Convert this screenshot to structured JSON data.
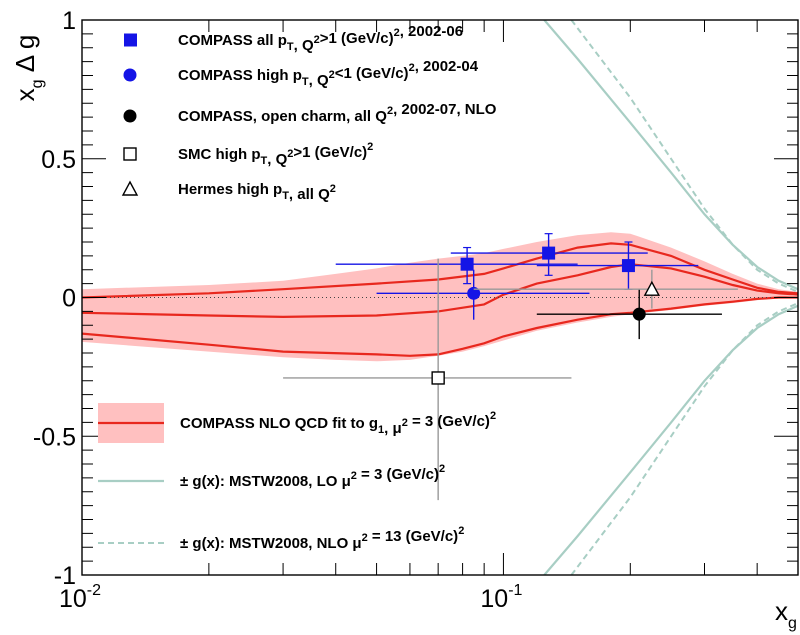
{
  "chart_data": {
    "type": "scatter",
    "x_scale": "log",
    "xlim": [
      0.01,
      0.5
    ],
    "ylim": [
      -1,
      1
    ],
    "xlabel": {
      "base": "x",
      "sub": "g"
    },
    "ylabel": {
      "base": "x",
      "sub": "g",
      "tail": " Δ g"
    },
    "yticks": [
      {
        "value": 1,
        "label": "1"
      },
      {
        "value": 0.5,
        "label": "0.5"
      },
      {
        "value": 0,
        "label": "0"
      },
      {
        "value": -0.5,
        "label": "-0.5"
      },
      {
        "value": -1,
        "label": "-1"
      }
    ],
    "xticks": [
      {
        "value": 0.01,
        "base": "10",
        "exp": "-2"
      },
      {
        "value": 0.1,
        "base": "10",
        "exp": "-1"
      }
    ],
    "colors": {
      "compass_all": "#1414e6",
      "compass_high": "#1414e6",
      "charm": "#000000",
      "smc": "#888888",
      "hermes": "#888888",
      "band": "#ffc0c0",
      "fit": "#e8281e",
      "mstw": "#a8cec4"
    },
    "series": [
      {
        "name": "COMPASS all pT, Q²>1 (GeV/c)², 2002-06",
        "marker": "square",
        "points": [
          {
            "x": 0.082,
            "xlo": 0.04,
            "xhi": 0.15,
            "y": 0.12,
            "ylo": 0.05,
            "yhi": 0.18
          },
          {
            "x": 0.128,
            "xlo": 0.075,
            "xhi": 0.22,
            "y": 0.16,
            "ylo": 0.08,
            "yhi": 0.23
          },
          {
            "x": 0.198,
            "xlo": 0.12,
            "xhi": 0.29,
            "y": 0.115,
            "ylo": 0.03,
            "yhi": 0.2
          }
        ]
      },
      {
        "name": "COMPASS high pT, Q²<1 (GeV/c)², 2002-04",
        "marker": "circle",
        "points": [
          {
            "x": 0.085,
            "xlo": 0.05,
            "xhi": 0.16,
            "y": 0.015,
            "ylo": -0.08,
            "yhi": 0.1
          }
        ]
      },
      {
        "name": "COMPASS, open charm, all Q², 2002-07, NLO",
        "marker": "circle",
        "points": [
          {
            "x": 0.21,
            "xlo": 0.12,
            "xhi": 0.33,
            "y": -0.06,
            "ylo": -0.15,
            "yhi": 0.03
          }
        ]
      },
      {
        "name": "SMC high pT, Q²>1 (GeV/c)²",
        "marker": "open-square",
        "points": [
          {
            "x": 0.07,
            "xlo": 0.03,
            "xhi": 0.145,
            "y": -0.29,
            "ylo": -0.73,
            "yhi": 0.14
          }
        ]
      },
      {
        "name": "Hermes high pT, all Q²",
        "marker": "open-triangle",
        "points": [
          {
            "x": 0.225,
            "xlo": 0.085,
            "xhi": 0.36,
            "y": 0.03,
            "ylo": -0.04,
            "yhi": 0.1
          }
        ]
      }
    ],
    "fit_band": {
      "x": [
        0.01,
        0.02,
        0.03,
        0.04,
        0.05,
        0.06,
        0.07,
        0.08,
        0.09,
        0.1,
        0.12,
        0.15,
        0.18,
        0.2,
        0.25,
        0.3,
        0.35,
        0.4,
        0.45,
        0.5
      ],
      "upper": [
        0.03,
        0.045,
        0.06,
        0.085,
        0.105,
        0.125,
        0.14,
        0.15,
        0.16,
        0.175,
        0.2,
        0.225,
        0.235,
        0.23,
        0.18,
        0.13,
        0.085,
        0.05,
        0.03,
        0.02
      ],
      "lower": [
        -0.16,
        -0.195,
        -0.215,
        -0.225,
        -0.23,
        -0.225,
        -0.21,
        -0.195,
        -0.175,
        -0.155,
        -0.12,
        -0.09,
        -0.07,
        -0.06,
        -0.045,
        -0.03,
        -0.02,
        -0.01,
        0.0,
        0.01
      ]
    },
    "fit_curves": [
      {
        "x": [
          0.01,
          0.02,
          0.03,
          0.05,
          0.07,
          0.09,
          0.1,
          0.12,
          0.15,
          0.18,
          0.2,
          0.25,
          0.3,
          0.35,
          0.4,
          0.45,
          0.5
        ],
        "y": [
          0.0,
          0.015,
          0.03,
          0.05,
          0.065,
          0.085,
          0.105,
          0.14,
          0.18,
          0.195,
          0.19,
          0.15,
          0.1,
          0.065,
          0.035,
          0.02,
          0.015
        ]
      },
      {
        "x": [
          0.01,
          0.02,
          0.03,
          0.05,
          0.07,
          0.09,
          0.1,
          0.12,
          0.15,
          0.18,
          0.2,
          0.25,
          0.3,
          0.35,
          0.4,
          0.45,
          0.5
        ],
        "y": [
          -0.055,
          -0.065,
          -0.07,
          -0.065,
          -0.05,
          -0.025,
          0.01,
          0.05,
          0.08,
          0.11,
          0.12,
          0.105,
          0.075,
          0.045,
          0.025,
          0.015,
          0.01
        ]
      },
      {
        "x": [
          0.01,
          0.02,
          0.03,
          0.05,
          0.06,
          0.07,
          0.08,
          0.09,
          0.1,
          0.12,
          0.15,
          0.18,
          0.2,
          0.25,
          0.3,
          0.35,
          0.4,
          0.45,
          0.5
        ],
        "y": [
          -0.13,
          -0.17,
          -0.195,
          -0.205,
          -0.21,
          -0.205,
          -0.185,
          -0.165,
          -0.14,
          -0.11,
          -0.08,
          -0.06,
          -0.055,
          -0.04,
          -0.025,
          -0.015,
          -0.005,
          0.0,
          0.0
        ]
      }
    ],
    "mstw_lo": [
      {
        "x": [
          0.125,
          0.15,
          0.2,
          0.25,
          0.3,
          0.35,
          0.4,
          0.45,
          0.5
        ],
        "y": [
          1.0,
          0.86,
          0.63,
          0.45,
          0.3,
          0.19,
          0.11,
          0.06,
          0.03
        ]
      },
      {
        "x": [
          0.125,
          0.15,
          0.2,
          0.25,
          0.3,
          0.35,
          0.4,
          0.45,
          0.5
        ],
        "y": [
          -1.0,
          -0.86,
          -0.63,
          -0.45,
          -0.3,
          -0.19,
          -0.11,
          -0.06,
          -0.03
        ]
      }
    ],
    "mstw_nlo": [
      {
        "x": [
          0.145,
          0.2,
          0.25,
          0.3,
          0.35,
          0.4,
          0.45,
          0.5
        ],
        "y": [
          1.0,
          0.72,
          0.5,
          0.32,
          0.19,
          0.1,
          0.05,
          0.02
        ]
      },
      {
        "x": [
          0.145,
          0.2,
          0.25,
          0.3,
          0.35,
          0.4,
          0.45,
          0.5
        ],
        "y": [
          -1.0,
          -0.72,
          -0.5,
          -0.32,
          -0.19,
          -0.1,
          -0.05,
          -0.02
        ]
      }
    ],
    "legend": {
      "placement": "top-left and bottom-left",
      "entries": [
        {
          "parts": [
            [
              "COMPASS all p",
              ""
            ],
            [
              "T",
              "sub"
            ],
            [
              ", Q",
              ""
            ],
            [
              "2",
              "sup"
            ],
            [
              ">1 (GeV/c)",
              ""
            ],
            [
              "2",
              "sup"
            ],
            [
              ", 2002-06",
              ""
            ]
          ]
        },
        {
          "parts": [
            [
              "COMPASS high p",
              ""
            ],
            [
              "T",
              "sub"
            ],
            [
              ", Q",
              ""
            ],
            [
              "2",
              "sup"
            ],
            [
              "<1 (GeV/c)",
              ""
            ],
            [
              "2",
              "sup"
            ],
            [
              ", 2002-04",
              ""
            ]
          ]
        },
        {
          "parts": [
            [
              "COMPASS, open charm, all Q",
              ""
            ],
            [
              "2",
              "sup"
            ],
            [
              ", 2002-07, NLO",
              ""
            ]
          ]
        },
        {
          "parts": [
            [
              "SMC high p",
              ""
            ],
            [
              "T",
              "sub"
            ],
            [
              ", Q",
              ""
            ],
            [
              "2",
              "sup"
            ],
            [
              ">1 (GeV/c)",
              ""
            ],
            [
              "2",
              "sup"
            ]
          ]
        },
        {
          "parts": [
            [
              "Hermes high p",
              ""
            ],
            [
              "T",
              "sub"
            ],
            [
              ", all Q",
              ""
            ],
            [
              "2",
              "sup"
            ]
          ]
        },
        {
          "parts": [
            [
              "COMPASS NLO QCD fit to g",
              ""
            ],
            [
              "1",
              "sub"
            ],
            [
              ", μ",
              ""
            ],
            [
              "2",
              "sup"
            ],
            [
              " = 3 (GeV/c)",
              ""
            ],
            [
              "2",
              "sup"
            ]
          ]
        },
        {
          "parts": [
            [
              "± g(x): MSTW2008, LO μ",
              ""
            ],
            [
              "2",
              "sup"
            ],
            [
              " = 3 (GeV/c)",
              ""
            ],
            [
              "2",
              "sup"
            ]
          ]
        },
        {
          "parts": [
            [
              "± g(x): MSTW2008, NLO μ",
              ""
            ],
            [
              "2",
              "sup"
            ],
            [
              " = 13 (GeV/c)",
              ""
            ],
            [
              "2",
              "sup"
            ]
          ]
        }
      ]
    }
  }
}
